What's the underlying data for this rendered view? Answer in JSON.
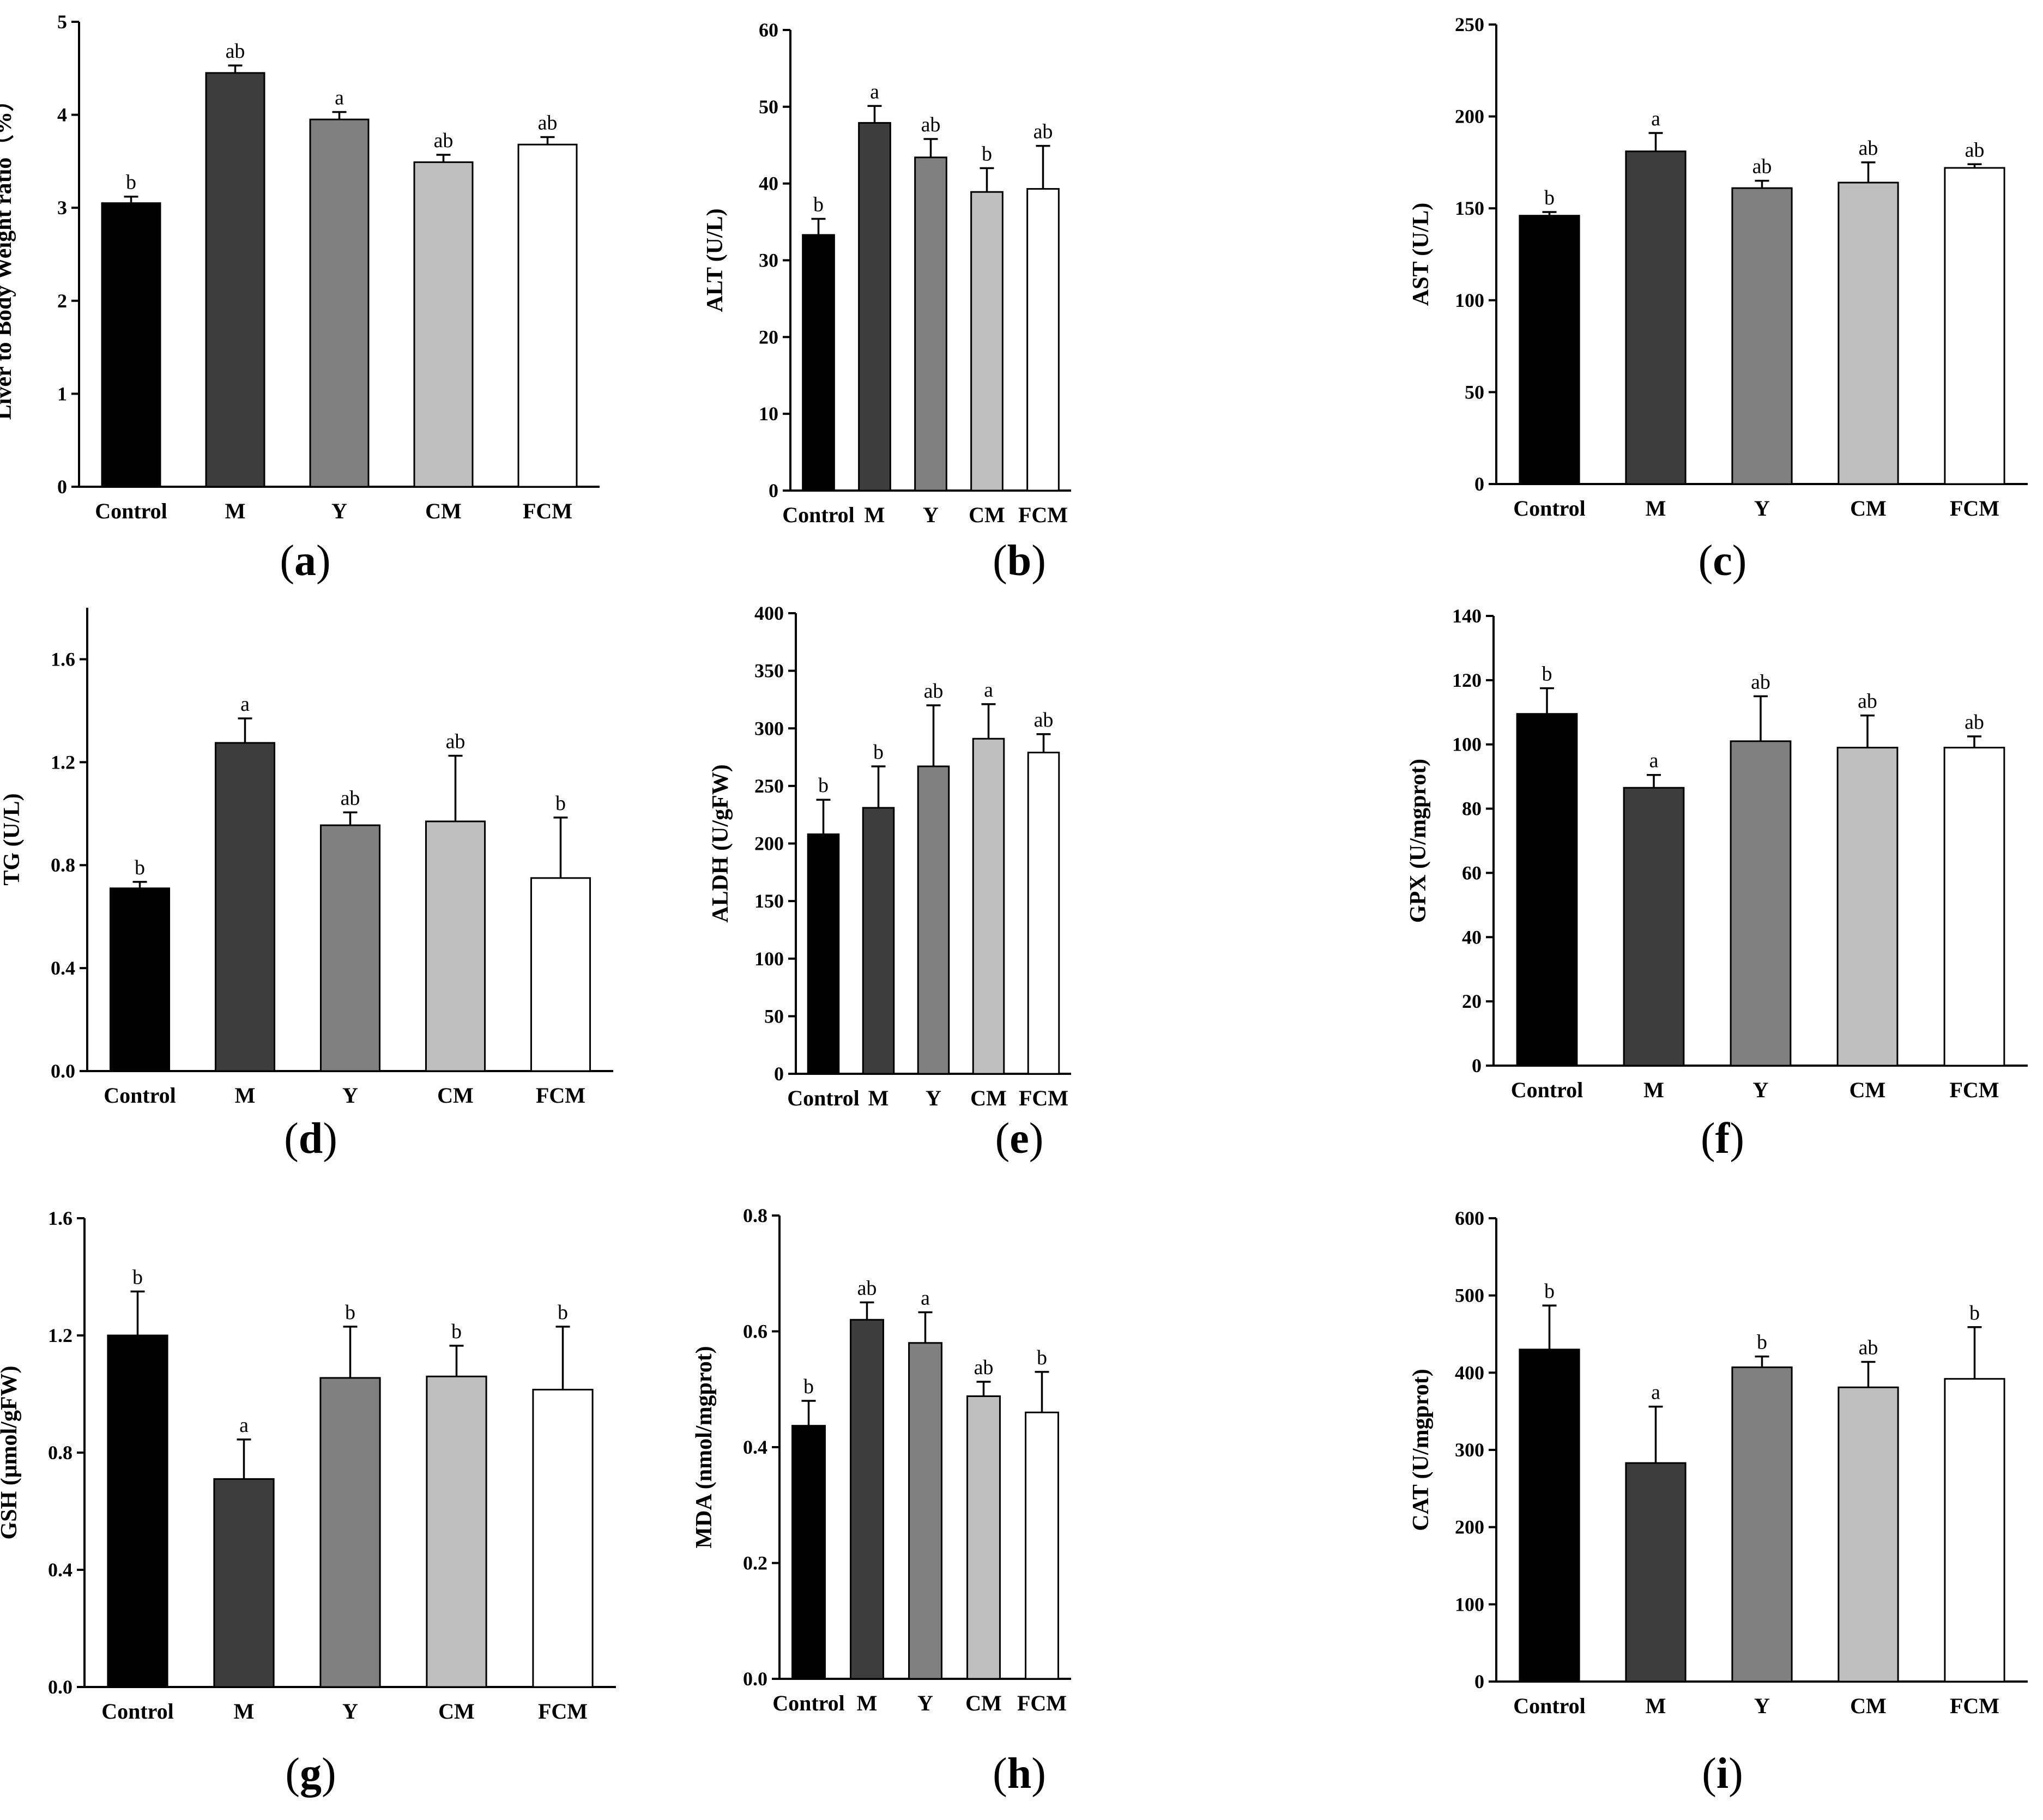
{
  "figure": {
    "bar_colors": [
      "#000000",
      "#3d3d3d",
      "#808080",
      "#bfbfbf",
      "#ffffff"
    ]
  },
  "chart_data": [
    {
      "panel": "a",
      "caption": "a",
      "type": "bar",
      "ylabel": "Liver to Body Weight ratio（%）",
      "categories": [
        "Control",
        "M",
        "Y",
        "CM",
        "FCM"
      ],
      "values": [
        3.05,
        4.45,
        3.95,
        3.49,
        3.68
      ],
      "errors": [
        0.07,
        0.08,
        0.08,
        0.08,
        0.08
      ],
      "sig": [
        "b",
        "ab",
        "a",
        "ab",
        "ab"
      ],
      "ylim": [
        0,
        5
      ],
      "ticks": [
        "0",
        "1",
        "2",
        "3",
        "4",
        "5"
      ]
    },
    {
      "panel": "b",
      "caption": "b",
      "type": "bar",
      "ylabel": "ALT (U/L)",
      "categories": [
        "Control",
        "M",
        "Y",
        "CM",
        "FCM"
      ],
      "values": [
        33.3,
        47.9,
        43.4,
        38.9,
        39.3
      ],
      "errors": [
        2.1,
        2.2,
        2.4,
        3.1,
        5.6
      ],
      "sig": [
        "b",
        "a",
        "ab",
        "b",
        "ab"
      ],
      "ylim": [
        0,
        60
      ],
      "ticks": [
        "0",
        "10",
        "20",
        "30",
        "40",
        "50",
        "60"
      ]
    },
    {
      "panel": "c",
      "caption": "c",
      "type": "bar",
      "ylabel": "AST (U/L)",
      "categories": [
        "Control",
        "M",
        "Y",
        "CM",
        "FCM"
      ],
      "values": [
        146,
        181,
        161,
        164,
        172
      ],
      "errors": [
        2,
        10,
        4,
        11,
        2
      ],
      "sig": [
        "b",
        "a",
        "ab",
        "ab",
        "ab"
      ],
      "ylim": [
        0,
        250
      ],
      "ticks": [
        "0",
        "50",
        "100",
        "150",
        "200",
        "250"
      ]
    },
    {
      "panel": "d",
      "caption": "d",
      "type": "bar",
      "ylabel": "TG (U/L)",
      "categories": [
        "Control",
        "M",
        "Y",
        "CM",
        "FCM"
      ],
      "values": [
        0.71,
        1.275,
        0.955,
        0.97,
        0.75
      ],
      "errors": [
        0.025,
        0.095,
        0.05,
        0.255,
        0.235
      ],
      "sig": [
        "b",
        "a",
        "ab",
        "ab",
        "b"
      ],
      "ylim": [
        0,
        1.8
      ],
      "ticks": [
        "0.0",
        "0.4",
        "0.8",
        "1.2",
        "1.6"
      ]
    },
    {
      "panel": "e",
      "caption": "e",
      "type": "bar",
      "ylabel": "ALDH (U/gFW)",
      "categories": [
        "Control",
        "M",
        "Y",
        "CM",
        "FCM"
      ],
      "values": [
        208,
        231,
        267,
        291,
        279
      ],
      "errors": [
        30,
        36,
        53,
        30,
        16
      ],
      "sig": [
        "b",
        "b",
        "ab",
        "a",
        "ab"
      ],
      "ylim": [
        0,
        400
      ],
      "ticks": [
        "0",
        "50",
        "100",
        "150",
        "200",
        "250",
        "300",
        "350",
        "400"
      ]
    },
    {
      "panel": "f",
      "caption": "f",
      "type": "bar",
      "ylabel": "GPX (U/mgprot)",
      "categories": [
        "Control",
        "M",
        "Y",
        "CM",
        "FCM"
      ],
      "values": [
        109.5,
        86.5,
        101,
        99,
        99
      ],
      "errors": [
        8,
        4,
        14,
        10,
        3.5
      ],
      "sig": [
        "b",
        "a",
        "ab",
        "ab",
        "ab"
      ],
      "ylim": [
        0,
        140
      ],
      "ticks": [
        "0",
        "20",
        "40",
        "60",
        "80",
        "100",
        "120",
        "140"
      ]
    },
    {
      "panel": "g",
      "caption": "g",
      "type": "bar",
      "ylabel": "GSH (μmol/gFW)",
      "categories": [
        "Control",
        "M",
        "Y",
        "CM",
        "FCM"
      ],
      "values": [
        1.2,
        0.71,
        1.055,
        1.06,
        1.015
      ],
      "errors": [
        0.15,
        0.135,
        0.175,
        0.105,
        0.215
      ],
      "sig": [
        "b",
        "a",
        "b",
        "b",
        "b"
      ],
      "ylim": [
        0,
        1.6
      ],
      "ticks": [
        "0.0",
        "0.4",
        "0.8",
        "1.2",
        "1.6"
      ]
    },
    {
      "panel": "h",
      "caption": "h",
      "type": "bar",
      "ylabel": "MDA (nmol/mgprot)",
      "categories": [
        "Control",
        "M",
        "Y",
        "CM",
        "FCM"
      ],
      "values": [
        0.437,
        0.62,
        0.58,
        0.488,
        0.46
      ],
      "errors": [
        0.043,
        0.03,
        0.053,
        0.025,
        0.07
      ],
      "sig": [
        "b",
        "ab",
        "a",
        "ab",
        "b"
      ],
      "ylim": [
        0,
        0.8
      ],
      "ticks": [
        "0.0",
        "0.2",
        "0.4",
        "0.6",
        "0.8"
      ]
    },
    {
      "panel": "i",
      "caption": "i",
      "type": "bar",
      "ylabel": "CAT (U/mgprot)",
      "categories": [
        "Control",
        "M",
        "Y",
        "CM",
        "FCM"
      ],
      "values": [
        430,
        283,
        407,
        381,
        392
      ],
      "errors": [
        57,
        73,
        14,
        33,
        67
      ],
      "sig": [
        "b",
        "a",
        "b",
        "ab",
        "b"
      ],
      "ylim": [
        0,
        600
      ],
      "ticks": [
        "0",
        "100",
        "200",
        "300",
        "400",
        "500",
        "600"
      ]
    }
  ]
}
